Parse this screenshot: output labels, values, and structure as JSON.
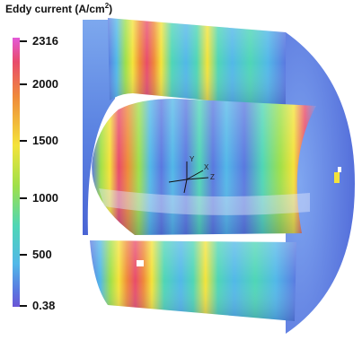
{
  "title": {
    "text": "Eddy current (A/cm",
    "superscript": "2",
    "suffix": ")"
  },
  "colorbar": {
    "labels": [
      "2316",
      "2000",
      "1500",
      "1000",
      "500",
      "0.38"
    ],
    "colors": [
      "#e35ad8",
      "#e84b6b",
      "#ef8a3a",
      "#f4e33a",
      "#9fe04a",
      "#4fd6b6",
      "#52b8e8",
      "#5a78e0",
      "#6a55d6"
    ]
  },
  "axes": {
    "y": "Y",
    "x": "X",
    "z": "Z"
  }
}
